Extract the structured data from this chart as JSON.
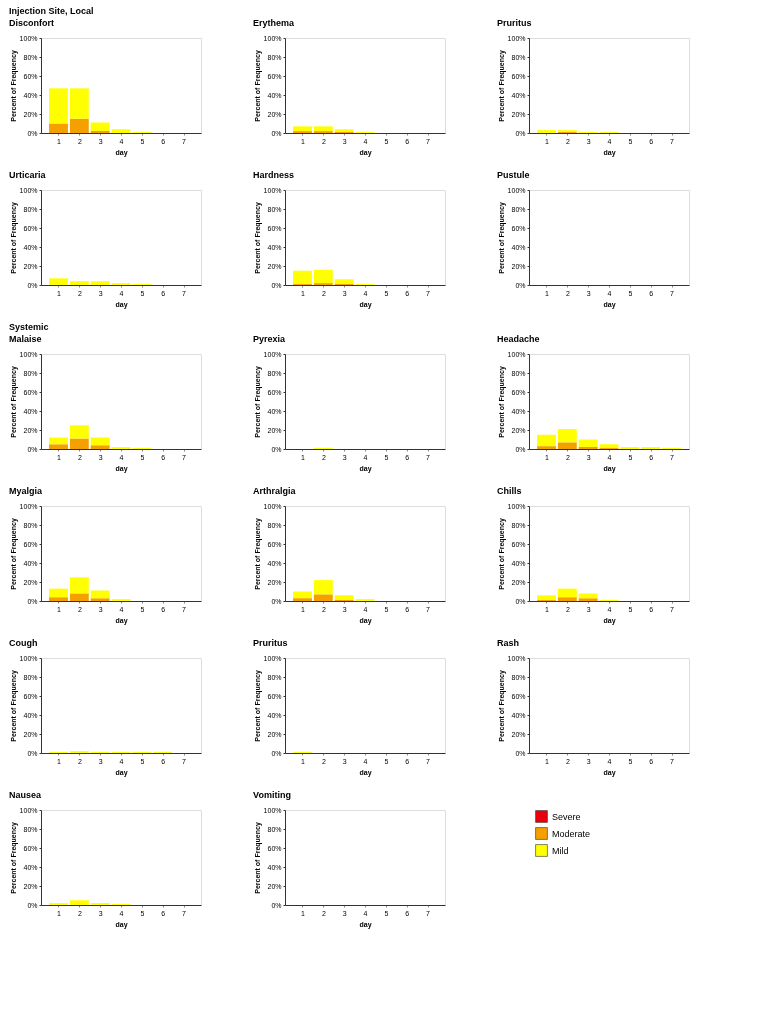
{
  "chart_data": [
    {
      "type": "bar",
      "stacked": true,
      "title": "Injection Site, Local",
      "subtitle": "Disconfort",
      "xlabel": "day",
      "ylabel": "Percent of Frequency",
      "categories": [
        "1",
        "2",
        "3",
        "4",
        "5",
        "6",
        "7"
      ],
      "ylim": [
        0,
        100
      ],
      "yticks": [
        {
          "value": 0,
          "label": "0%"
        },
        {
          "value": 20,
          "label": "20%"
        },
        {
          "value": 40,
          "label": "40%"
        },
        {
          "value": 60,
          "label": "60%"
        },
        {
          "value": 80,
          "label": "80%"
        },
        {
          "value": 100,
          "label": "100%"
        }
      ],
      "grid": false,
      "series": [
        {
          "color": "#e8000b",
          "values": [
            0,
            0,
            0,
            0,
            0,
            0,
            0
          ]
        },
        {
          "color": "#f5a000",
          "values": [
            10,
            15,
            2,
            0,
            0,
            0,
            0
          ]
        },
        {
          "color": "#ffff00",
          "values": [
            37,
            32,
            9,
            4,
            1,
            0,
            0
          ]
        }
      ]
    },
    {
      "type": "bar",
      "stacked": true,
      "title": "Erythema",
      "xlabel": "day",
      "ylabel": "Percent of Frequency",
      "categories": [
        "1",
        "2",
        "3",
        "4",
        "5",
        "6",
        "7"
      ],
      "ylim": [
        0,
        100
      ],
      "yticks": [
        {
          "value": 0,
          "label": "0%"
        },
        {
          "value": 20,
          "label": "20%"
        },
        {
          "value": 40,
          "label": "40%"
        },
        {
          "value": 60,
          "label": "60%"
        },
        {
          "value": 80,
          "label": "80%"
        },
        {
          "value": 100,
          "label": "100%"
        }
      ],
      "grid": false,
      "series": [
        {
          "color": "#e8000b",
          "values": [
            0,
            0,
            0,
            0,
            0,
            0,
            0
          ]
        },
        {
          "color": "#f5a000",
          "values": [
            2,
            2,
            1,
            0,
            0,
            0,
            0
          ]
        },
        {
          "color": "#ffff00",
          "values": [
            5,
            5,
            3,
            1,
            0,
            0,
            0
          ]
        }
      ]
    },
    {
      "type": "bar",
      "stacked": true,
      "title": "Pruritus",
      "xlabel": "day",
      "ylabel": "Percent of Frequency",
      "categories": [
        "1",
        "2",
        "3",
        "4",
        "5",
        "6",
        "7"
      ],
      "ylim": [
        0,
        100
      ],
      "yticks": [
        {
          "value": 0,
          "label": "0%"
        },
        {
          "value": 20,
          "label": "20%"
        },
        {
          "value": 40,
          "label": "40%"
        },
        {
          "value": 60,
          "label": "60%"
        },
        {
          "value": 80,
          "label": "80%"
        },
        {
          "value": 100,
          "label": "100%"
        }
      ],
      "grid": false,
      "series": [
        {
          "color": "#e8000b",
          "values": [
            0,
            0,
            0,
            0,
            0,
            0,
            0
          ]
        },
        {
          "color": "#f5a000",
          "values": [
            0,
            1,
            0,
            0,
            0,
            0,
            0
          ]
        },
        {
          "color": "#ffff00",
          "values": [
            3,
            2,
            1,
            1,
            0,
            0,
            0
          ]
        }
      ]
    },
    {
      "type": "bar",
      "stacked": true,
      "title": "Urticaria",
      "xlabel": "day",
      "ylabel": "Percent of Frequency",
      "categories": [
        "1",
        "2",
        "3",
        "4",
        "5",
        "6",
        "7"
      ],
      "ylim": [
        0,
        100
      ],
      "yticks": [
        {
          "value": 0,
          "label": "0%"
        },
        {
          "value": 20,
          "label": "20%"
        },
        {
          "value": 40,
          "label": "40%"
        },
        {
          "value": 60,
          "label": "60%"
        },
        {
          "value": 80,
          "label": "80%"
        },
        {
          "value": 100,
          "label": "100%"
        }
      ],
      "grid": false,
      "series": [
        {
          "color": "#e8000b",
          "values": [
            0,
            0,
            0,
            0,
            0,
            0,
            0
          ]
        },
        {
          "color": "#f5a000",
          "values": [
            0,
            0,
            0,
            0,
            0,
            0,
            0
          ]
        },
        {
          "color": "#ffff00",
          "values": [
            7,
            4,
            4,
            2,
            1,
            0,
            0
          ]
        }
      ]
    },
    {
      "type": "bar",
      "stacked": true,
      "title": "Hardness",
      "xlabel": "day",
      "ylabel": "Percent of Frequency",
      "categories": [
        "1",
        "2",
        "3",
        "4",
        "5",
        "6",
        "7"
      ],
      "ylim": [
        0,
        100
      ],
      "yticks": [
        {
          "value": 0,
          "label": "0%"
        },
        {
          "value": 20,
          "label": "20%"
        },
        {
          "value": 40,
          "label": "40%"
        },
        {
          "value": 60,
          "label": "60%"
        },
        {
          "value": 80,
          "label": "80%"
        },
        {
          "value": 100,
          "label": "100%"
        }
      ],
      "grid": false,
      "series": [
        {
          "color": "#e8000b",
          "values": [
            0,
            0,
            0,
            0,
            0,
            0,
            0
          ]
        },
        {
          "color": "#f5a000",
          "values": [
            1,
            2,
            1,
            0,
            0,
            0,
            0
          ]
        },
        {
          "color": "#ffff00",
          "values": [
            14,
            14,
            5,
            1,
            0,
            0,
            0
          ]
        }
      ]
    },
    {
      "type": "bar",
      "stacked": true,
      "title": "Pustule",
      "xlabel": "day",
      "ylabel": "Percent of Frequency",
      "categories": [
        "1",
        "2",
        "3",
        "4",
        "5",
        "6",
        "7"
      ],
      "ylim": [
        0,
        100
      ],
      "yticks": [
        {
          "value": 0,
          "label": "0%"
        },
        {
          "value": 20,
          "label": "20%"
        },
        {
          "value": 40,
          "label": "40%"
        },
        {
          "value": 60,
          "label": "60%"
        },
        {
          "value": 80,
          "label": "80%"
        },
        {
          "value": 100,
          "label": "100%"
        }
      ],
      "grid": false,
      "series": [
        {
          "color": "#e8000b",
          "values": [
            0,
            0,
            0,
            0,
            0,
            0,
            0
          ]
        },
        {
          "color": "#f5a000",
          "values": [
            0,
            0,
            0,
            0,
            0,
            0,
            0
          ]
        },
        {
          "color": "#ffff00",
          "values": [
            0,
            0,
            0,
            0,
            0,
            0,
            0
          ]
        }
      ]
    },
    {
      "type": "bar",
      "stacked": true,
      "title": "Systemic",
      "subtitle": "Malaise",
      "xlabel": "day",
      "ylabel": "Percent of Frequency",
      "categories": [
        "1",
        "2",
        "3",
        "4",
        "5",
        "6",
        "7"
      ],
      "ylim": [
        0,
        100
      ],
      "yticks": [
        {
          "value": 0,
          "label": "0%"
        },
        {
          "value": 20,
          "label": "20%"
        },
        {
          "value": 40,
          "label": "40%"
        },
        {
          "value": 60,
          "label": "60%"
        },
        {
          "value": 80,
          "label": "80%"
        },
        {
          "value": 100,
          "label": "100%"
        }
      ],
      "grid": false,
      "series": [
        {
          "color": "#e8000b",
          "values": [
            0,
            0,
            0,
            0,
            0,
            0,
            0
          ]
        },
        {
          "color": "#f5a000",
          "values": [
            5,
            11,
            4,
            0,
            0,
            0,
            0
          ]
        },
        {
          "color": "#ffff00",
          "values": [
            7,
            14,
            8,
            2,
            1,
            0,
            0
          ]
        }
      ]
    },
    {
      "type": "bar",
      "stacked": true,
      "title": "Pyrexia",
      "xlabel": "day",
      "ylabel": "Percent of Frequency",
      "categories": [
        "1",
        "2",
        "3",
        "4",
        "5",
        "6",
        "7"
      ],
      "ylim": [
        0,
        100
      ],
      "yticks": [
        {
          "value": 0,
          "label": "0%"
        },
        {
          "value": 20,
          "label": "20%"
        },
        {
          "value": 40,
          "label": "40%"
        },
        {
          "value": 60,
          "label": "60%"
        },
        {
          "value": 80,
          "label": "80%"
        },
        {
          "value": 100,
          "label": "100%"
        }
      ],
      "grid": false,
      "series": [
        {
          "color": "#e8000b",
          "values": [
            0,
            0,
            0,
            0,
            0,
            0,
            0
          ]
        },
        {
          "color": "#f5a000",
          "values": [
            0,
            0,
            0,
            0,
            0,
            0,
            0
          ]
        },
        {
          "color": "#ffff00",
          "values": [
            0,
            1,
            0,
            0,
            0,
            0,
            0
          ]
        }
      ]
    },
    {
      "type": "bar",
      "stacked": true,
      "title": "Headache",
      "xlabel": "day",
      "ylabel": "Percent of Frequency",
      "categories": [
        "1",
        "2",
        "3",
        "4",
        "5",
        "6",
        "7"
      ],
      "ylim": [
        0,
        100
      ],
      "yticks": [
        {
          "value": 0,
          "label": "0%"
        },
        {
          "value": 20,
          "label": "20%"
        },
        {
          "value": 40,
          "label": "40%"
        },
        {
          "value": 60,
          "label": "60%"
        },
        {
          "value": 80,
          "label": "80%"
        },
        {
          "value": 100,
          "label": "100%"
        }
      ],
      "grid": false,
      "series": [
        {
          "color": "#e8000b",
          "values": [
            0,
            0,
            0,
            0,
            0,
            0,
            0
          ]
        },
        {
          "color": "#f5a000",
          "values": [
            3,
            7,
            2,
            1,
            0,
            0,
            0
          ]
        },
        {
          "color": "#ffff00",
          "values": [
            12,
            14,
            8,
            4,
            2,
            2,
            1
          ]
        }
      ]
    },
    {
      "type": "bar",
      "stacked": true,
      "title": "Myalgia",
      "xlabel": "day",
      "ylabel": "Percent of Frequency",
      "categories": [
        "1",
        "2",
        "3",
        "4",
        "5",
        "6",
        "7"
      ],
      "ylim": [
        0,
        100
      ],
      "yticks": [
        {
          "value": 0,
          "label": "0%"
        },
        {
          "value": 20,
          "label": "20%"
        },
        {
          "value": 40,
          "label": "40%"
        },
        {
          "value": 60,
          "label": "60%"
        },
        {
          "value": 80,
          "label": "80%"
        },
        {
          "value": 100,
          "label": "100%"
        }
      ],
      "grid": false,
      "series": [
        {
          "color": "#e8000b",
          "values": [
            0,
            0,
            0,
            0,
            0,
            0,
            0
          ]
        },
        {
          "color": "#f5a000",
          "values": [
            4,
            8,
            3,
            0,
            0,
            0,
            0
          ]
        },
        {
          "color": "#ffff00",
          "values": [
            9,
            17,
            8,
            2,
            0,
            0,
            0
          ]
        }
      ]
    },
    {
      "type": "bar",
      "stacked": true,
      "title": "Arthralgia",
      "xlabel": "day",
      "ylabel": "Percent of Frequency",
      "categories": [
        "1",
        "2",
        "3",
        "4",
        "5",
        "6",
        "7"
      ],
      "ylim": [
        0,
        100
      ],
      "yticks": [
        {
          "value": 0,
          "label": "0%"
        },
        {
          "value": 20,
          "label": "20%"
        },
        {
          "value": 40,
          "label": "40%"
        },
        {
          "value": 60,
          "label": "60%"
        },
        {
          "value": 80,
          "label": "80%"
        },
        {
          "value": 100,
          "label": "100%"
        }
      ],
      "grid": false,
      "series": [
        {
          "color": "#e8000b",
          "values": [
            0,
            0,
            0,
            0,
            0,
            0,
            0
          ]
        },
        {
          "color": "#f5a000",
          "values": [
            3,
            7,
            1,
            0,
            0,
            0,
            0
          ]
        },
        {
          "color": "#ffff00",
          "values": [
            7,
            15,
            5,
            2,
            0,
            0,
            0
          ]
        }
      ]
    },
    {
      "type": "bar",
      "stacked": true,
      "title": "Chills",
      "xlabel": "day",
      "ylabel": "Percent of Frequency",
      "categories": [
        "1",
        "2",
        "3",
        "4",
        "5",
        "6",
        "7"
      ],
      "ylim": [
        0,
        100
      ],
      "yticks": [
        {
          "value": 0,
          "label": "0%"
        },
        {
          "value": 20,
          "label": "20%"
        },
        {
          "value": 40,
          "label": "40%"
        },
        {
          "value": 60,
          "label": "60%"
        },
        {
          "value": 80,
          "label": "80%"
        },
        {
          "value": 100,
          "label": "100%"
        }
      ],
      "grid": false,
      "series": [
        {
          "color": "#e8000b",
          "values": [
            0,
            0,
            0,
            0,
            0,
            0,
            0
          ]
        },
        {
          "color": "#f5a000",
          "values": [
            1,
            4,
            3,
            0,
            0,
            0,
            0
          ]
        },
        {
          "color": "#ffff00",
          "values": [
            5,
            9,
            5,
            1,
            0,
            0,
            0
          ]
        }
      ]
    },
    {
      "type": "bar",
      "stacked": true,
      "title": "Cough",
      "xlabel": "day",
      "ylabel": "Percent of Frequency",
      "categories": [
        "1",
        "2",
        "3",
        "4",
        "5",
        "6",
        "7"
      ],
      "ylim": [
        0,
        100
      ],
      "yticks": [
        {
          "value": 0,
          "label": "0%"
        },
        {
          "value": 20,
          "label": "20%"
        },
        {
          "value": 40,
          "label": "40%"
        },
        {
          "value": 60,
          "label": "60%"
        },
        {
          "value": 80,
          "label": "80%"
        },
        {
          "value": 100,
          "label": "100%"
        }
      ],
      "grid": false,
      "series": [
        {
          "color": "#e8000b",
          "values": [
            0,
            0,
            0,
            0,
            0,
            0,
            0
          ]
        },
        {
          "color": "#f5a000",
          "values": [
            0,
            0,
            0,
            0,
            0,
            0,
            0
          ]
        },
        {
          "color": "#ffff00",
          "values": [
            1,
            2,
            1,
            1,
            1,
            1,
            0
          ]
        }
      ]
    },
    {
      "type": "bar",
      "stacked": true,
      "title": "Pruritus",
      "xlabel": "day",
      "ylabel": "Percent of Frequency",
      "categories": [
        "1",
        "2",
        "3",
        "4",
        "5",
        "6",
        "7"
      ],
      "ylim": [
        0,
        100
      ],
      "yticks": [
        {
          "value": 0,
          "label": "0%"
        },
        {
          "value": 20,
          "label": "20%"
        },
        {
          "value": 40,
          "label": "40%"
        },
        {
          "value": 60,
          "label": "60%"
        },
        {
          "value": 80,
          "label": "80%"
        },
        {
          "value": 100,
          "label": "100%"
        }
      ],
      "grid": false,
      "series": [
        {
          "color": "#e8000b",
          "values": [
            0,
            0,
            0,
            0,
            0,
            0,
            0
          ]
        },
        {
          "color": "#f5a000",
          "values": [
            0,
            0,
            0,
            0,
            0,
            0,
            0
          ]
        },
        {
          "color": "#ffff00",
          "values": [
            1,
            0,
            0,
            0,
            0,
            0,
            0
          ]
        }
      ]
    },
    {
      "type": "bar",
      "stacked": true,
      "title": "Rash",
      "xlabel": "day",
      "ylabel": "Percent of Frequency",
      "categories": [
        "1",
        "2",
        "3",
        "4",
        "5",
        "6",
        "7"
      ],
      "ylim": [
        0,
        100
      ],
      "yticks": [
        {
          "value": 0,
          "label": "0%"
        },
        {
          "value": 20,
          "label": "20%"
        },
        {
          "value": 40,
          "label": "40%"
        },
        {
          "value": 60,
          "label": "60%"
        },
        {
          "value": 80,
          "label": "80%"
        },
        {
          "value": 100,
          "label": "100%"
        }
      ],
      "grid": false,
      "series": [
        {
          "color": "#e8000b",
          "values": [
            0,
            0,
            0,
            0,
            0,
            0,
            0
          ]
        },
        {
          "color": "#f5a000",
          "values": [
            0,
            0,
            0,
            0,
            0,
            0,
            0
          ]
        },
        {
          "color": "#ffff00",
          "values": [
            0,
            0,
            0,
            0,
            0,
            0,
            0
          ]
        }
      ]
    },
    {
      "type": "bar",
      "stacked": true,
      "title": "Nausea",
      "xlabel": "day",
      "ylabel": "Percent of Frequency",
      "categories": [
        "1",
        "2",
        "3",
        "4",
        "5",
        "6",
        "7"
      ],
      "ylim": [
        0,
        100
      ],
      "yticks": [
        {
          "value": 0,
          "label": "0%"
        },
        {
          "value": 20,
          "label": "20%"
        },
        {
          "value": 40,
          "label": "40%"
        },
        {
          "value": 60,
          "label": "60%"
        },
        {
          "value": 80,
          "label": "80%"
        },
        {
          "value": 100,
          "label": "100%"
        }
      ],
      "grid": false,
      "series": [
        {
          "color": "#e8000b",
          "values": [
            0,
            0,
            0,
            0,
            0,
            0,
            0
          ]
        },
        {
          "color": "#f5a000",
          "values": [
            0,
            0,
            0,
            0,
            0,
            0,
            0
          ]
        },
        {
          "color": "#ffff00",
          "values": [
            2,
            5,
            2,
            1,
            0,
            0,
            0
          ]
        }
      ]
    },
    {
      "type": "bar",
      "stacked": true,
      "title": "Vomiting",
      "xlabel": "day",
      "ylabel": "Percent of Frequency",
      "categories": [
        "1",
        "2",
        "3",
        "4",
        "5",
        "6",
        "7"
      ],
      "ylim": [
        0,
        100
      ],
      "yticks": [
        {
          "value": 0,
          "label": "0%"
        },
        {
          "value": 20,
          "label": "20%"
        },
        {
          "value": 40,
          "label": "40%"
        },
        {
          "value": 60,
          "label": "60%"
        },
        {
          "value": 80,
          "label": "80%"
        },
        {
          "value": 100,
          "label": "100%"
        }
      ],
      "grid": false,
      "legend": "right",
      "series": [
        {
          "name": "Severe",
          "color": "#e8000b",
          "values": [
            0,
            0,
            0,
            0,
            0,
            0,
            0
          ]
        },
        {
          "name": "Moderate",
          "color": "#f5a000",
          "values": [
            0,
            0,
            0,
            0,
            0,
            0,
            0
          ]
        },
        {
          "name": "Mild",
          "color": "#ffff00",
          "values": [
            0,
            0,
            0,
            0,
            0,
            0,
            0
          ]
        }
      ]
    }
  ]
}
